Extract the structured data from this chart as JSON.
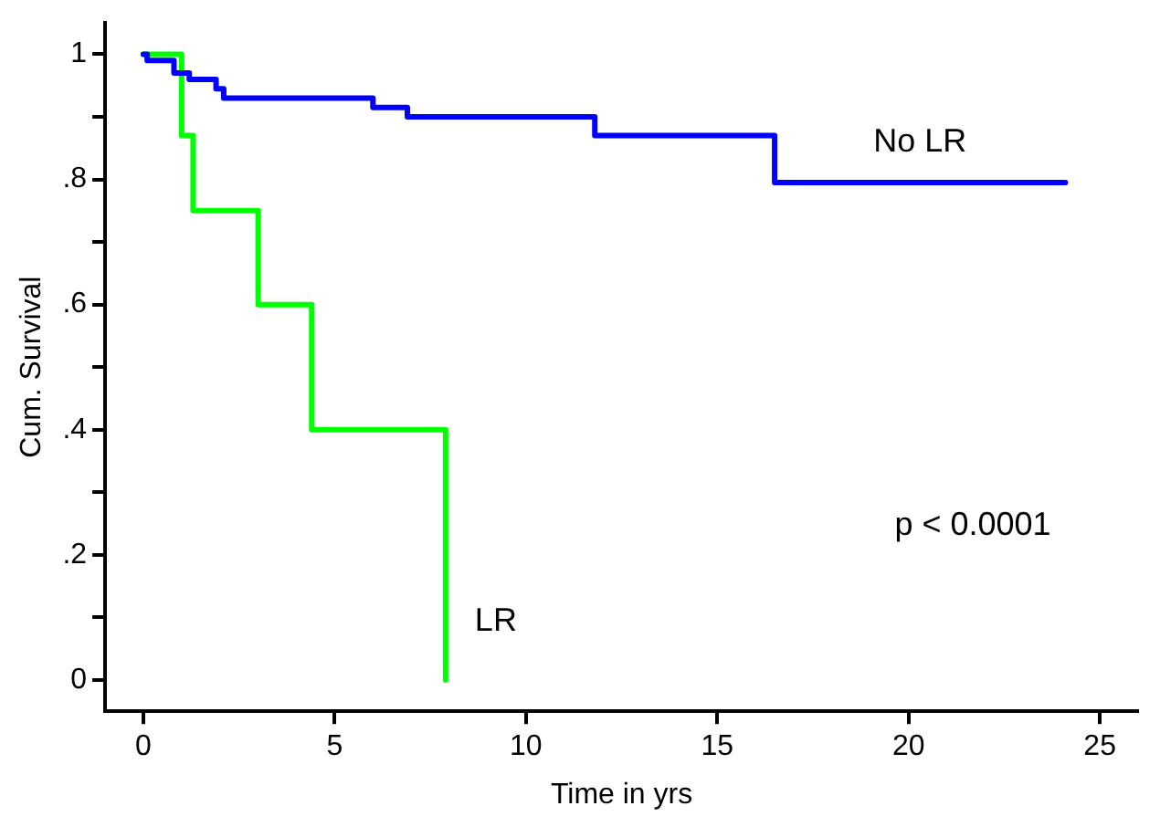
{
  "chart_data": {
    "type": "step",
    "xlabel": "Time in yrs",
    "ylabel": "Cum. Survival",
    "xlim": [
      -1,
      26
    ],
    "ylim": [
      -0.05,
      1.05
    ],
    "xticks": [
      0,
      5,
      10,
      15,
      20,
      25
    ],
    "yticks": [
      {
        "value": 0,
        "label": "0"
      },
      {
        "value": 0.1,
        "label": null
      },
      {
        "value": 0.2,
        "label": ".2"
      },
      {
        "value": 0.3,
        "label": null
      },
      {
        "value": 0.4,
        "label": ".4"
      },
      {
        "value": 0.5,
        "label": null
      },
      {
        "value": 0.6,
        "label": ".6"
      },
      {
        "value": 0.7,
        "label": null
      },
      {
        "value": 0.8,
        "label": ".8"
      },
      {
        "value": 0.9,
        "label": null
      },
      {
        "value": 1,
        "label": "1"
      }
    ],
    "grid": false,
    "legend": false,
    "marker": "none",
    "line_style": "solid",
    "series": [
      {
        "name": "No LR",
        "color": "#0000ff",
        "x": [
          0,
          0.1,
          0.8,
          1.2,
          1.9,
          2.1,
          6.0,
          6.9,
          11.8,
          16.5,
          24.1
        ],
        "values": [
          1,
          0.99,
          0.97,
          0.96,
          0.945,
          0.93,
          0.915,
          0.9,
          0.87,
          0.795,
          0.795
        ]
      },
      {
        "name": "LR",
        "color": "#00ff00",
        "x": [
          0,
          1.0,
          1.3,
          3.0,
          4.4,
          7.9
        ],
        "values": [
          1,
          0.87,
          0.75,
          0.6,
          0.4,
          0
        ]
      }
    ],
    "annotations": [
      "p < 0.0001"
    ]
  }
}
